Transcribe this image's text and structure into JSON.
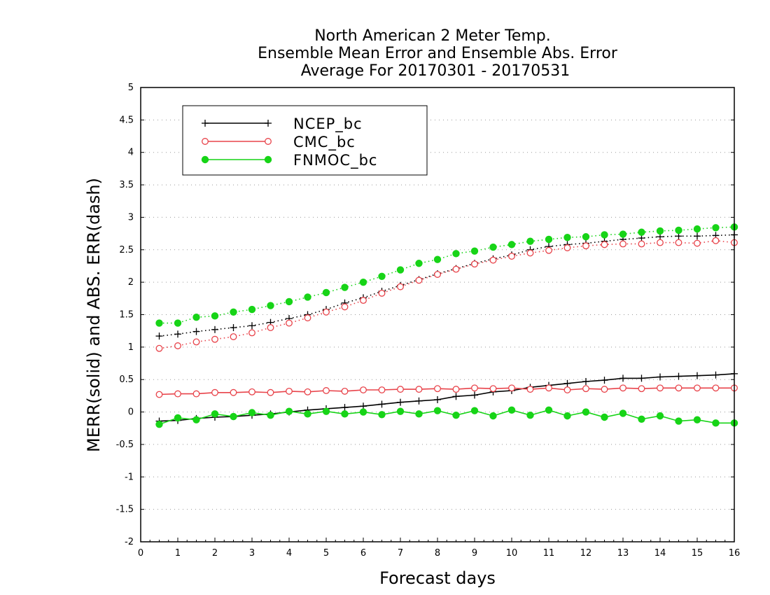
{
  "chart_data": {
    "type": "line",
    "title": [
      "North American 2 Meter Temp.",
      "Ensemble Mean Error and Ensemble Abs. Error",
      "Average For 20170301 - 20170531"
    ],
    "xlabel": "Forecast days",
    "ylabel": "MERR(solid) and ABS. ERR(dash)",
    "xlim": [
      0,
      16
    ],
    "ylim": [
      -2,
      5
    ],
    "xticks": [
      "0",
      "1",
      "2",
      "3",
      "4",
      "5",
      "6",
      "7",
      "8",
      "9",
      "10",
      "11",
      "12",
      "13",
      "14",
      "15",
      "16"
    ],
    "yticks": [
      "-2",
      "-1.5",
      "-1",
      "-0.5",
      "0",
      "0.5",
      "1",
      "1.5",
      "2",
      "2.5",
      "3",
      "3.5",
      "4",
      "4.5",
      "5"
    ],
    "ytick_values": [
      -2,
      -1.5,
      -1,
      -0.5,
      0,
      0.5,
      1,
      1.5,
      2,
      2.5,
      3,
      3.5,
      4,
      4.5,
      5
    ],
    "grid": "horizontal-dotted",
    "legend_position": "top-left",
    "x": [
      0.5,
      1,
      1.5,
      2,
      2.5,
      3,
      3.5,
      4,
      4.5,
      5,
      5.5,
      6,
      6.5,
      7,
      7.5,
      8,
      8.5,
      9,
      9.5,
      10,
      10.5,
      11,
      11.5,
      12,
      12.5,
      13,
      13.5,
      14,
      14.5,
      15,
      15.5,
      16
    ],
    "series": [
      {
        "name": "NCEP_bc",
        "color": "#000000",
        "marker": "plus",
        "merr": [
          -0.14,
          -0.13,
          -0.1,
          -0.08,
          -0.07,
          -0.05,
          -0.03,
          0.0,
          0.03,
          0.05,
          0.07,
          0.09,
          0.12,
          0.15,
          0.17,
          0.19,
          0.24,
          0.26,
          0.31,
          0.33,
          0.38,
          0.41,
          0.44,
          0.47,
          0.49,
          0.52,
          0.52,
          0.54,
          0.55,
          0.56,
          0.57,
          0.59
        ],
        "abs_err": [
          1.17,
          1.2,
          1.24,
          1.27,
          1.3,
          1.33,
          1.38,
          1.44,
          1.5,
          1.58,
          1.68,
          1.76,
          1.86,
          1.95,
          2.04,
          2.13,
          2.21,
          2.29,
          2.36,
          2.42,
          2.5,
          2.55,
          2.58,
          2.6,
          2.63,
          2.66,
          2.68,
          2.7,
          2.71,
          2.71,
          2.72,
          2.73
        ]
      },
      {
        "name": "CMC_bc",
        "color": "#e8434a",
        "marker": "open-circle",
        "merr": [
          0.27,
          0.28,
          0.28,
          0.3,
          0.3,
          0.31,
          0.3,
          0.32,
          0.31,
          0.33,
          0.32,
          0.34,
          0.34,
          0.35,
          0.35,
          0.36,
          0.35,
          0.37,
          0.36,
          0.37,
          0.35,
          0.37,
          0.34,
          0.36,
          0.35,
          0.37,
          0.36,
          0.37,
          0.37,
          0.37,
          0.37,
          0.37
        ],
        "abs_err": [
          0.98,
          1.02,
          1.08,
          1.12,
          1.16,
          1.22,
          1.3,
          1.37,
          1.45,
          1.54,
          1.62,
          1.72,
          1.83,
          1.93,
          2.03,
          2.12,
          2.2,
          2.28,
          2.34,
          2.4,
          2.45,
          2.49,
          2.53,
          2.56,
          2.58,
          2.59,
          2.59,
          2.61,
          2.61,
          2.6,
          2.64,
          2.61
        ]
      },
      {
        "name": "FNMOC_bc",
        "color": "#17d417",
        "marker": "filled-circle",
        "merr": [
          -0.19,
          -0.09,
          -0.12,
          -0.03,
          -0.07,
          -0.01,
          -0.05,
          0.01,
          -0.03,
          0.01,
          -0.03,
          0.0,
          -0.04,
          0.01,
          -0.03,
          0.02,
          -0.05,
          0.02,
          -0.06,
          0.03,
          -0.05,
          0.03,
          -0.06,
          0.0,
          -0.08,
          -0.02,
          -0.11,
          -0.06,
          -0.14,
          -0.12,
          -0.17,
          -0.17
        ],
        "abs_err": [
          1.37,
          1.37,
          1.46,
          1.48,
          1.54,
          1.58,
          1.64,
          1.7,
          1.77,
          1.84,
          1.92,
          2.0,
          2.09,
          2.19,
          2.29,
          2.35,
          2.44,
          2.48,
          2.54,
          2.58,
          2.63,
          2.66,
          2.69,
          2.7,
          2.73,
          2.74,
          2.77,
          2.79,
          2.8,
          2.82,
          2.84,
          2.85
        ]
      }
    ]
  }
}
